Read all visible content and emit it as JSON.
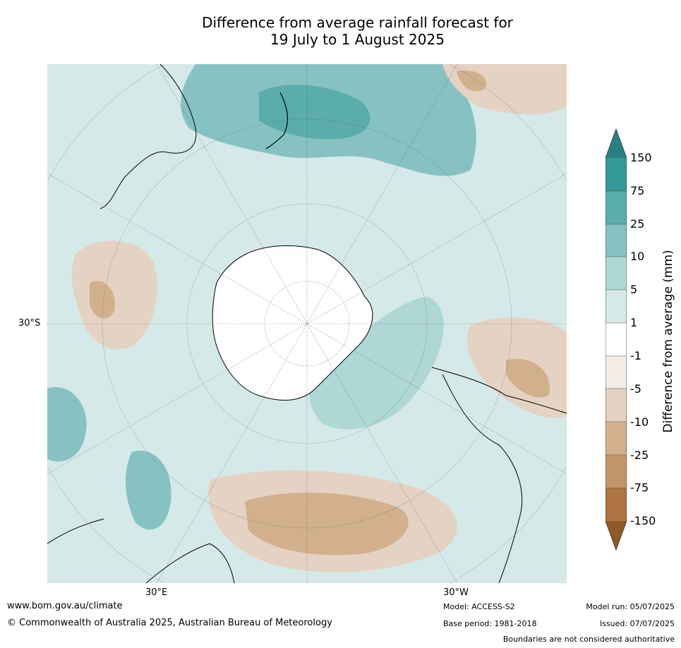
{
  "title_line1": "Difference from average rainfall forecast for",
  "title_line2": "19 July to 1 August 2025",
  "map": {
    "projection": "south-polar-stereographic",
    "lat_labels": {
      "left": "30°S",
      "bottom_left": "30°E",
      "bottom_right": "30°W"
    }
  },
  "colorbar": {
    "title": "Difference from average (mm)",
    "ticks": [
      "150",
      "75",
      "25",
      "10",
      "5",
      "1",
      "-1",
      "-5",
      "-10",
      "-25",
      "-75",
      "-150"
    ],
    "colors": {
      "extend_top": "#2a7f80",
      "gt75": "#329a98",
      "25to75": "#5aacad",
      "10to25": "#86c2c1",
      "5to10": "#aed7d6",
      "1to5": "#d5e9e8",
      "neutral": "#ffffff",
      "m1to_m5": "#f4ece6",
      "m5to_m10": "#e4d2c2",
      "m10to_m25": "#d2b08e",
      "m25to_m75": "#c49568",
      "m75to_m150": "#ae7442",
      "extend_bottom": "#8e5a25"
    }
  },
  "footer": {
    "url": "www.bom.gov.au/climate",
    "copyright": "© Commonwealth of Australia 2025, Australian Bureau of Meteorology",
    "model": "Model: ACCESS-S2",
    "base_period": "Base period: 1981-2018",
    "model_run": "Model run: 05/07/2025",
    "issued": "Issued: 07/07/2025",
    "disclaimer": "Boundaries are not considered authoritative"
  }
}
